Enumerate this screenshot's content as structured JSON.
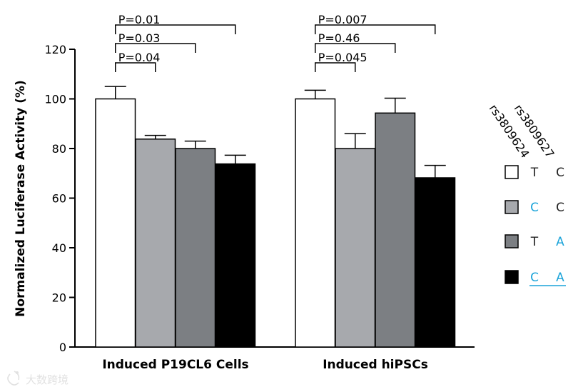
{
  "chart_data": {
    "type": "bar",
    "ylabel": "Normalized Luciferase Activity (%)",
    "ylim": [
      0,
      120
    ],
    "yticks": [
      0,
      20,
      40,
      60,
      80,
      100,
      120
    ],
    "categories": [
      "Induced P19CL6 Cells",
      "Induced hiPSCs"
    ],
    "series": [
      {
        "name": "T C",
        "rs3809624": "T",
        "rs3809627": "C",
        "color": "#ffffff",
        "values": [
          100,
          100
        ],
        "errors": [
          5,
          3.5
        ]
      },
      {
        "name": "C C",
        "rs3809624": "C",
        "rs3809627": "C",
        "color": "#a7a9ad",
        "values": [
          83.8,
          80
        ],
        "errors": [
          1.5,
          6
        ]
      },
      {
        "name": "T A",
        "rs3809624": "T",
        "rs3809627": "A",
        "color": "#7c7f83",
        "values": [
          80,
          94.3
        ],
        "errors": [
          3,
          6
        ]
      },
      {
        "name": "C A",
        "rs3809624": "C",
        "rs3809627": "A",
        "color": "#000000",
        "values": [
          73.8,
          68.2
        ],
        "errors": [
          3.5,
          5
        ]
      }
    ],
    "comparisons": [
      {
        "group": 0,
        "from": 0,
        "to": 1,
        "label": "P=0.04"
      },
      {
        "group": 0,
        "from": 0,
        "to": 2,
        "label": "P=0.03"
      },
      {
        "group": 0,
        "from": 0,
        "to": 3,
        "label": "P=0.01"
      },
      {
        "group": 1,
        "from": 0,
        "to": 1,
        "label": "P=0.045"
      },
      {
        "group": 1,
        "from": 0,
        "to": 2,
        "label": "P=0.46"
      },
      {
        "group": 1,
        "from": 0,
        "to": 3,
        "label": "P=0.007"
      }
    ],
    "legend": {
      "column_headers": [
        "rs3809624",
        "rs3809627"
      ],
      "highlight_color": "#1aa3d9",
      "text_color": "#222222"
    }
  },
  "watermark": "大数跨境"
}
